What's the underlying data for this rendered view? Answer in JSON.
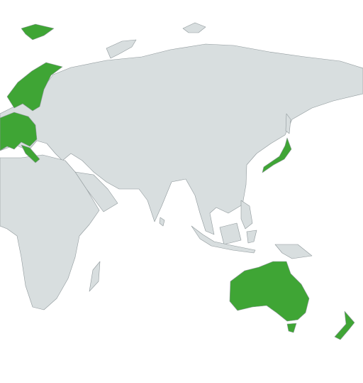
{
  "map": {
    "land_color": "#d8dedf",
    "highlight_color": "#3fa535"
  }
}
